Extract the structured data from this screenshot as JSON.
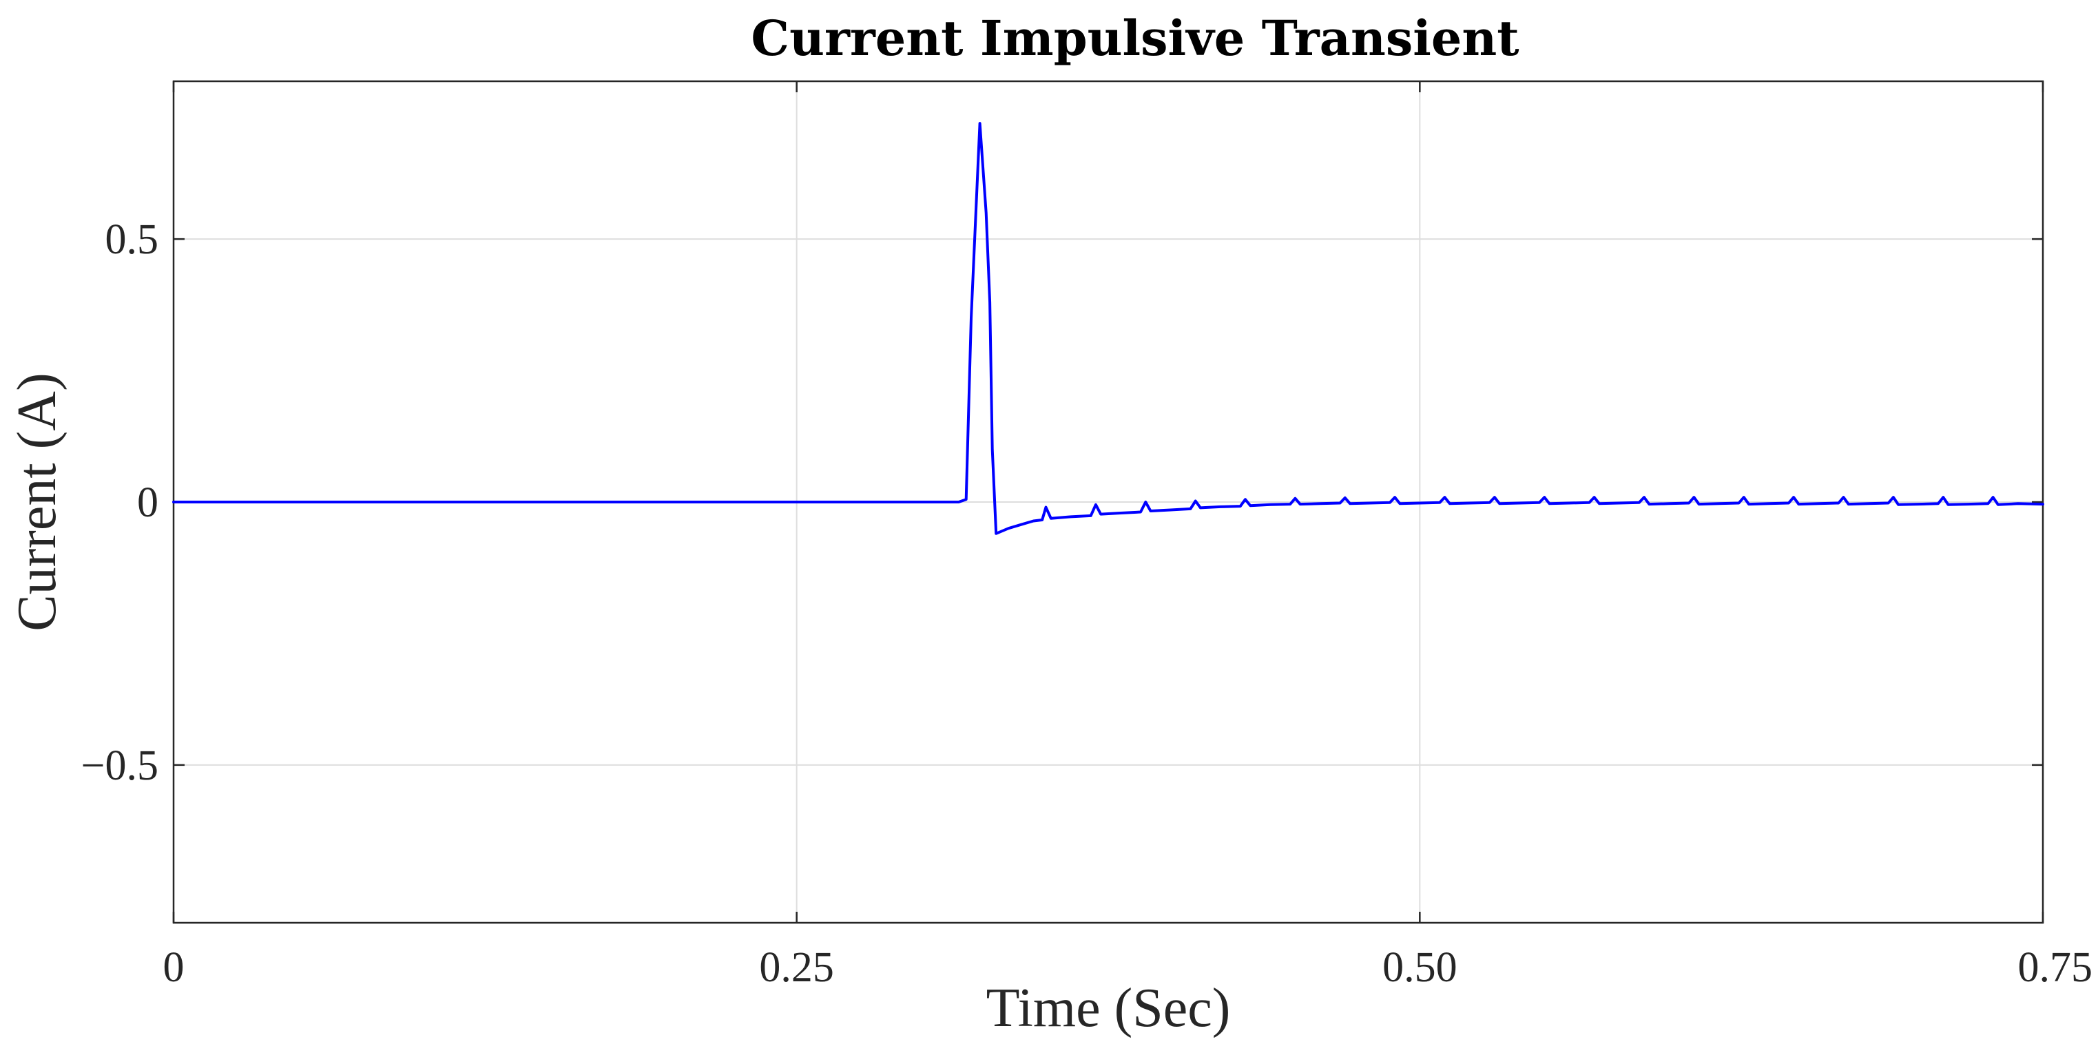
{
  "chart_data": {
    "type": "line",
    "title": "Current Impulsive Transient",
    "xlabel": "Time (Sec)",
    "ylabel": "Current (A)",
    "xlim": [
      0,
      0.75
    ],
    "ylim": [
      -0.8,
      0.8
    ],
    "x_ticks": [
      {
        "value": 0,
        "label": "0"
      },
      {
        "value": 0.25,
        "label": "0.25"
      },
      {
        "value": 0.5,
        "label": "0.50"
      },
      {
        "value": 0.75,
        "label": "0.75"
      }
    ],
    "y_ticks": [
      {
        "value": -0.5,
        "label": "−0.5"
      },
      {
        "value": 0,
        "label": "0"
      },
      {
        "value": 0.5,
        "label": "0.5"
      }
    ],
    "grid": true,
    "line_color": "#0000ff",
    "x": [
      0,
      0.1,
      0.2,
      0.3,
      0.315,
      0.318,
      0.32,
      0.3235,
      0.326,
      0.3275,
      0.3285,
      0.33,
      0.335,
      0.34,
      0.345,
      0.3485,
      0.35,
      0.352,
      0.36,
      0.368,
      0.37,
      0.372,
      0.38,
      0.388,
      0.39,
      0.392,
      0.4,
      0.408,
      0.41,
      0.412,
      0.42,
      0.428,
      0.43,
      0.432,
      0.44,
      0.448,
      0.45,
      0.452,
      0.46,
      0.468,
      0.47,
      0.472,
      0.48,
      0.488,
      0.49,
      0.492,
      0.5,
      0.508,
      0.51,
      0.512,
      0.52,
      0.528,
      0.53,
      0.532,
      0.54,
      0.548,
      0.55,
      0.552,
      0.56,
      0.568,
      0.57,
      0.572,
      0.58,
      0.588,
      0.59,
      0.592,
      0.6,
      0.608,
      0.61,
      0.612,
      0.62,
      0.628,
      0.63,
      0.632,
      0.64,
      0.648,
      0.65,
      0.652,
      0.66,
      0.668,
      0.67,
      0.672,
      0.68,
      0.688,
      0.69,
      0.692,
      0.7,
      0.708,
      0.71,
      0.712,
      0.72,
      0.728,
      0.73,
      0.732,
      0.74,
      0.75
    ],
    "y": [
      0,
      0,
      0,
      0,
      0,
      0.005,
      0.35,
      0.72,
      0.55,
      0.38,
      0.1,
      -0.06,
      -0.05,
      -0.043,
      -0.036,
      -0.034,
      -0.01,
      -0.031,
      -0.028,
      -0.026,
      -0.005,
      -0.023,
      -0.021,
      -0.019,
      0,
      -0.017,
      -0.015,
      -0.013,
      0.002,
      -0.011,
      -0.009,
      -0.008,
      0.005,
      -0.007,
      -0.005,
      -0.004,
      0.007,
      -0.004,
      -0.003,
      -0.002,
      0.008,
      -0.003,
      -0.002,
      -0.001,
      0.009,
      -0.003,
      -0.002,
      -0.001,
      0.009,
      -0.003,
      -0.002,
      -0.001,
      0.009,
      -0.003,
      -0.002,
      -0.001,
      0.009,
      -0.003,
      -0.002,
      -0.001,
      0.009,
      -0.003,
      -0.002,
      -0.001,
      0.009,
      -0.004,
      -0.003,
      -0.002,
      0.009,
      -0.004,
      -0.003,
      -0.002,
      0.009,
      -0.004,
      -0.003,
      -0.002,
      0.009,
      -0.004,
      -0.003,
      -0.002,
      0.009,
      -0.004,
      -0.003,
      -0.002,
      0.009,
      -0.005,
      -0.004,
      -0.003,
      0.009,
      -0.005,
      -0.004,
      -0.003,
      0.009,
      -0.005,
      -0.003,
      -0.004
    ]
  }
}
